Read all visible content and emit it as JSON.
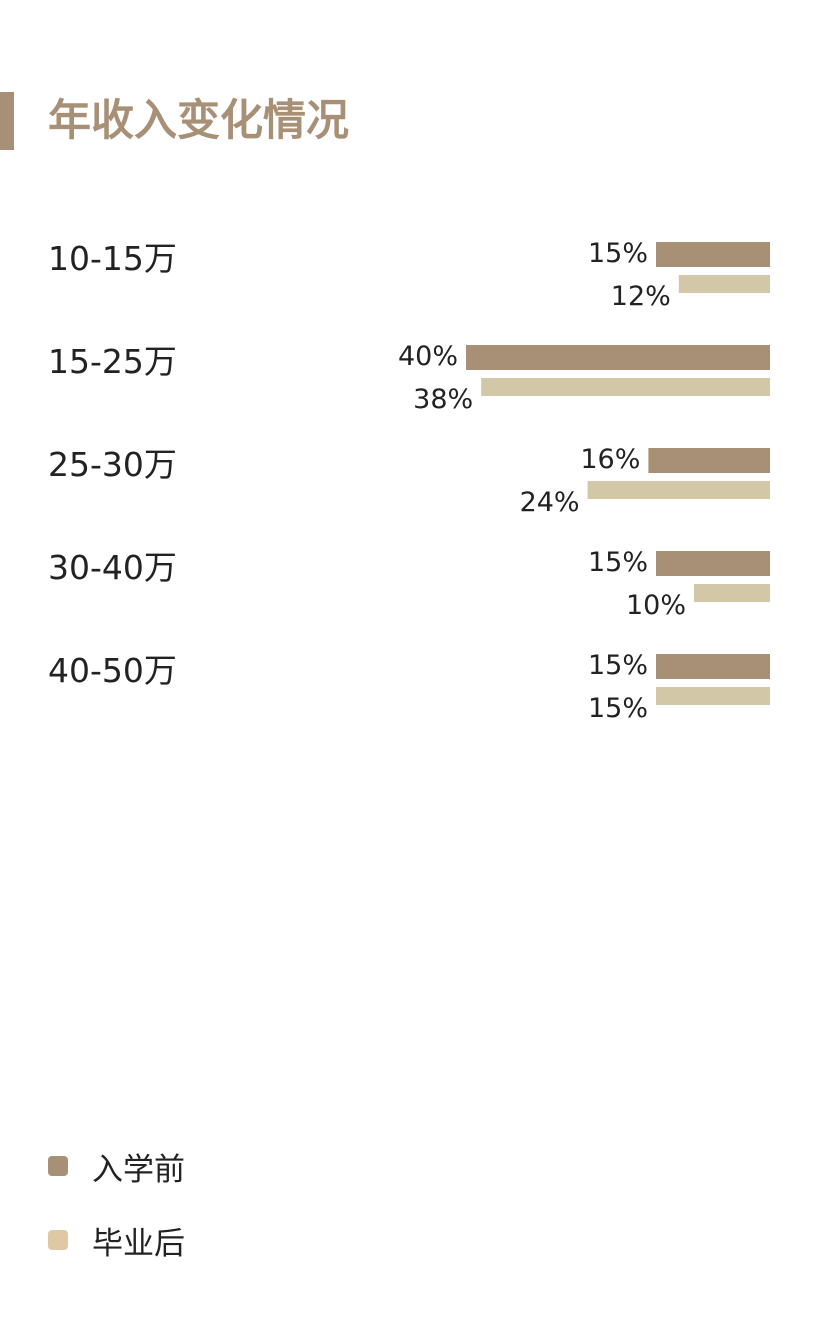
{
  "title": "年收入变化情况",
  "colors": {
    "accent": "#a89077",
    "before": "#a89077",
    "after": "#d2c8a8",
    "legend_after": "#dfc9a4"
  },
  "legend": {
    "before": "入学前",
    "after": "毕业后"
  },
  "chart_data": {
    "type": "bar",
    "orientation": "horizontal",
    "title": "年收入变化情况",
    "xlabel": "",
    "ylabel": "",
    "unit": "%",
    "legend_position": "bottom-left",
    "grid": false,
    "categories": [
      "10-15万",
      "15-25万",
      "25-30万",
      "30-40万",
      "40-50万"
    ],
    "series": [
      {
        "name": "入学前",
        "values": [
          15,
          40,
          16,
          15,
          15
        ]
      },
      {
        "name": "毕业后",
        "values": [
          12,
          38,
          24,
          10,
          15
        ]
      }
    ],
    "value_labels": [
      [
        "15%",
        "40%",
        "16%",
        "15%",
        "15%"
      ],
      [
        "12%",
        "38%",
        "24%",
        "10%",
        "15%"
      ]
    ]
  }
}
